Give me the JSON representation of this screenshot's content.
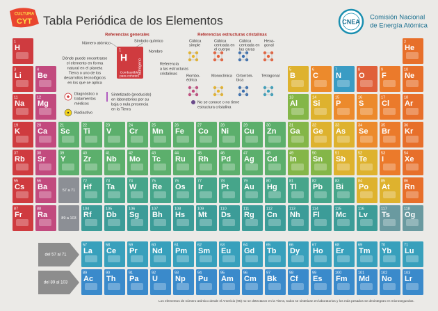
{
  "header": {
    "logo_top": "CULTURA",
    "logo_bottom": "CYT",
    "title": "Tabla Periódica de los Elementos",
    "acronym": "CNEA",
    "organization": [
      "Comisión Nacional",
      "de Energía Atómica"
    ]
  },
  "legend": {
    "title": "Referencias generales",
    "atomic_number": "Número atómico",
    "chemical_symbol": "Símbolo químico",
    "name": "Nombre",
    "crystal_reference": [
      "Referencia",
      "a las estructuras",
      "cristalinas"
    ],
    "where_found": [
      "Dónde puede encontrarse",
      "el elemento en forma",
      "natural en el planeta",
      "Tierra o uno de los",
      "desarrollos tecnológicos",
      "en los que se aplica"
    ],
    "sample_number": "1",
    "sample_symbol": "H",
    "sample_name": "hidrógeno",
    "sample_use": [
      "Combustible",
      "para cohetes"
    ],
    "medical": [
      "Diagnóstico o",
      "tratamientos",
      "médicos"
    ],
    "radioactive": "Radiactivo",
    "synthetic": [
      "Sintetizado (producido)",
      "en laboratorios por su",
      "baja o nula presencia",
      "en la Tierra"
    ]
  },
  "crystal_legend": {
    "title": "Referencias estructuras cristalinas",
    "items": [
      [
        "Cúbica",
        "simple"
      ],
      [
        "Cúbica",
        "centrada en",
        "el cuerpo"
      ],
      [
        "Cúbica",
        "centrada en",
        "las caras"
      ],
      [
        "Hexa-",
        "gonal"
      ],
      [
        "Rombo-",
        "édrica"
      ],
      [
        "Monoclínica"
      ],
      [
        "Ortorróm-",
        "bica"
      ],
      [
        "Tetragonal"
      ]
    ],
    "unknown": [
      "No se conoce o no tiene",
      "estructura cristalina"
    ]
  },
  "elements": [
    {
      "number": 1,
      "symbol": "H",
      "color": "#cf3b3f"
    },
    {
      "number": 2,
      "symbol": "He",
      "color": "#e76f2a"
    },
    {
      "number": 3,
      "symbol": "Li",
      "color": "#cf3b3f"
    },
    {
      "number": 4,
      "symbol": "Be",
      "color": "#c24a7e"
    },
    {
      "number": 5,
      "symbol": "B",
      "color": "#deb22e"
    },
    {
      "number": 6,
      "symbol": "C",
      "color": "#ec8a2c"
    },
    {
      "number": 7,
      "symbol": "N",
      "color": "#3a9cc4"
    },
    {
      "number": 8,
      "symbol": "O",
      "color": "#e0603a"
    },
    {
      "number": 9,
      "symbol": "F",
      "color": "#eb7a2b"
    },
    {
      "number": 10,
      "symbol": "Ne",
      "color": "#e76f2a"
    },
    {
      "number": 11,
      "symbol": "Na",
      "color": "#cf3b3f"
    },
    {
      "number": 12,
      "symbol": "Mg",
      "color": "#c24a7e"
    },
    {
      "number": 13,
      "symbol": "Al",
      "color": "#84b648"
    },
    {
      "number": 14,
      "symbol": "Si",
      "color": "#deb22e"
    },
    {
      "number": 15,
      "symbol": "P",
      "color": "#ec8a2c"
    },
    {
      "number": 16,
      "symbol": "S",
      "color": "#ec8a2c"
    },
    {
      "number": 17,
      "symbol": "Cl",
      "color": "#eb7a2b"
    },
    {
      "number": 18,
      "symbol": "Ar",
      "color": "#e76f2a"
    },
    {
      "number": 19,
      "symbol": "K",
      "color": "#cf3b3f"
    },
    {
      "number": 20,
      "symbol": "Ca",
      "color": "#c24a7e"
    },
    {
      "number": 21,
      "symbol": "Sc",
      "color": "#5caf6c"
    },
    {
      "number": 22,
      "symbol": "Ti",
      "color": "#5caf6c"
    },
    {
      "number": 23,
      "symbol": "V",
      "color": "#5caf6c"
    },
    {
      "number": 24,
      "symbol": "Cr",
      "color": "#5caf6c"
    },
    {
      "number": 25,
      "symbol": "Mn",
      "color": "#5caf6c"
    },
    {
      "number": 26,
      "symbol": "Fe",
      "color": "#5caf6c"
    },
    {
      "number": 27,
      "symbol": "Co",
      "color": "#5caf6c"
    },
    {
      "number": 28,
      "symbol": "Ni",
      "color": "#5caf6c"
    },
    {
      "number": 29,
      "symbol": "Cu",
      "color": "#5caf6c"
    },
    {
      "number": 30,
      "symbol": "Zn",
      "color": "#5caf6c"
    },
    {
      "number": 31,
      "symbol": "Ga",
      "color": "#84b648"
    },
    {
      "number": 32,
      "symbol": "Ge",
      "color": "#deb22e"
    },
    {
      "number": 33,
      "symbol": "As",
      "color": "#deb22e"
    },
    {
      "number": 34,
      "symbol": "Se",
      "color": "#ec8a2c"
    },
    {
      "number": 35,
      "symbol": "Br",
      "color": "#eb7a2b"
    },
    {
      "number": 36,
      "symbol": "Kr",
      "color": "#e76f2a"
    },
    {
      "number": 37,
      "symbol": "Rb",
      "color": "#cf3b3f"
    },
    {
      "number": 38,
      "symbol": "Sr",
      "color": "#c24a7e"
    },
    {
      "number": 39,
      "symbol": "Y",
      "color": "#5caf6c"
    },
    {
      "number": 40,
      "symbol": "Zr",
      "color": "#5caf6c"
    },
    {
      "number": 41,
      "symbol": "Nb",
      "color": "#5caf6c"
    },
    {
      "number": 42,
      "symbol": "Mo",
      "color": "#5caf6c"
    },
    {
      "number": 43,
      "symbol": "Tc",
      "color": "#5caf6c"
    },
    {
      "number": 44,
      "symbol": "Ru",
      "color": "#5caf6c"
    },
    {
      "number": 45,
      "symbol": "Rh",
      "color": "#5caf6c"
    },
    {
      "number": 46,
      "symbol": "Pd",
      "color": "#5caf6c"
    },
    {
      "number": 47,
      "symbol": "Ag",
      "color": "#5caf6c"
    },
    {
      "number": 48,
      "symbol": "Cd",
      "color": "#5caf6c"
    },
    {
      "number": 49,
      "symbol": "In",
      "color": "#84b648"
    },
    {
      "number": 50,
      "symbol": "Sn",
      "color": "#84b648"
    },
    {
      "number": 51,
      "symbol": "Sb",
      "color": "#deb22e"
    },
    {
      "number": 52,
      "symbol": "Te",
      "color": "#deb22e"
    },
    {
      "number": 53,
      "symbol": "I",
      "color": "#eb7a2b"
    },
    {
      "number": 54,
      "symbol": "Xe",
      "color": "#e76f2a"
    },
    {
      "number": 55,
      "symbol": "Cs",
      "color": "#cf3b3f"
    },
    {
      "number": 56,
      "symbol": "Ba",
      "color": "#c24a7e"
    },
    {
      "number": 57,
      "symbol": "La",
      "color": "#38a0bc"
    },
    {
      "number": 58,
      "symbol": "Ce",
      "color": "#38a0bc"
    },
    {
      "number": 59,
      "symbol": "Pr",
      "color": "#38a0bc"
    },
    {
      "number": 60,
      "symbol": "Nd",
      "color": "#38a0bc"
    },
    {
      "number": 61,
      "symbol": "Pm",
      "color": "#38a0bc"
    },
    {
      "number": 62,
      "symbol": "Sm",
      "color": "#38a0bc"
    },
    {
      "number": 63,
      "symbol": "Eu",
      "color": "#38a0bc"
    },
    {
      "number": 64,
      "symbol": "Gd",
      "color": "#38a0bc"
    },
    {
      "number": 65,
      "symbol": "Tb",
      "color": "#38a0bc"
    },
    {
      "number": 66,
      "symbol": "Dy",
      "color": "#38a0bc"
    },
    {
      "number": 67,
      "symbol": "Ho",
      "color": "#38a0bc"
    },
    {
      "number": 68,
      "symbol": "Er",
      "color": "#38a0bc"
    },
    {
      "number": 69,
      "symbol": "Tm",
      "color": "#38a0bc"
    },
    {
      "number": 70,
      "symbol": "Yb",
      "color": "#38a0bc"
    },
    {
      "number": 71,
      "symbol": "Lu",
      "color": "#38a0bc"
    },
    {
      "number": 72,
      "symbol": "Hf",
      "color": "#46a58a"
    },
    {
      "number": 73,
      "symbol": "Ta",
      "color": "#46a58a"
    },
    {
      "number": 74,
      "symbol": "W",
      "color": "#46a58a"
    },
    {
      "number": 75,
      "symbol": "Re",
      "color": "#46a58a"
    },
    {
      "number": 76,
      "symbol": "Os",
      "color": "#46a58a"
    },
    {
      "number": 77,
      "symbol": "Ir",
      "color": "#46a58a"
    },
    {
      "number": 78,
      "symbol": "Pt",
      "color": "#46a58a"
    },
    {
      "number": 79,
      "symbol": "Au",
      "color": "#46a58a"
    },
    {
      "number": 80,
      "symbol": "Hg",
      "color": "#46a58a"
    },
    {
      "number": 81,
      "symbol": "Tl",
      "color": "#46a58a"
    },
    {
      "number": 82,
      "symbol": "Pb",
      "color": "#46a58a"
    },
    {
      "number": 83,
      "symbol": "Bi",
      "color": "#46a58a"
    },
    {
      "number": 84,
      "symbol": "Po",
      "color": "#deb22e"
    },
    {
      "number": 85,
      "symbol": "At",
      "color": "#deb22e"
    },
    {
      "number": 86,
      "symbol": "Rn",
      "color": "#e76f2a"
    },
    {
      "number": 87,
      "symbol": "Fr",
      "color": "#cf3b3f"
    },
    {
      "number": 88,
      "symbol": "Ra",
      "color": "#c24a7e"
    },
    {
      "number": 89,
      "symbol": "Ac",
      "color": "#3a8acb"
    },
    {
      "number": 90,
      "symbol": "Th",
      "color": "#3a8acb"
    },
    {
      "number": 91,
      "symbol": "Pa",
      "color": "#3a8acb"
    },
    {
      "number": 92,
      "symbol": "U",
      "color": "#3a8acb"
    },
    {
      "number": 93,
      "symbol": "Np",
      "color": "#3a8acb"
    },
    {
      "number": 94,
      "symbol": "Pu",
      "color": "#3a8acb"
    },
    {
      "number": 95,
      "symbol": "Am",
      "color": "#3a8acb"
    },
    {
      "number": 96,
      "symbol": "Cm",
      "color": "#3a8acb"
    },
    {
      "number": 97,
      "symbol": "Bk",
      "color": "#3a8acb"
    },
    {
      "number": 98,
      "symbol": "Cf",
      "color": "#3a8acb"
    },
    {
      "number": 99,
      "symbol": "Es",
      "color": "#3a8acb"
    },
    {
      "number": 100,
      "symbol": "Fm",
      "color": "#3a8acb"
    },
    {
      "number": 101,
      "symbol": "Md",
      "color": "#3a8acb"
    },
    {
      "number": 102,
      "symbol": "No",
      "color": "#3a8acb"
    },
    {
      "number": 103,
      "symbol": "Lr",
      "color": "#3a8acb"
    },
    {
      "number": 104,
      "symbol": "Rf",
      "color": "#3c9c98"
    },
    {
      "number": 105,
      "symbol": "Db",
      "color": "#3c9c98"
    },
    {
      "number": 106,
      "symbol": "Sg",
      "color": "#3c9c98"
    },
    {
      "number": 107,
      "symbol": "Bh",
      "color": "#3c9c98"
    },
    {
      "number": 108,
      "symbol": "Hs",
      "color": "#3c9c98"
    },
    {
      "number": 109,
      "symbol": "Mt",
      "color": "#3c9c98"
    },
    {
      "number": 110,
      "symbol": "Ds",
      "color": "#3c9c98"
    },
    {
      "number": 111,
      "symbol": "Rg",
      "color": "#3c9c98"
    },
    {
      "number": 112,
      "symbol": "Cn",
      "color": "#3c9c98"
    },
    {
      "number": 113,
      "symbol": "Nh",
      "color": "#3c9c98"
    },
    {
      "number": 114,
      "symbol": "Fl",
      "color": "#3c9c98"
    },
    {
      "number": 115,
      "symbol": "Mc",
      "color": "#3c9c98"
    },
    {
      "number": 116,
      "symbol": "Lv",
      "color": "#3c9c98"
    },
    {
      "number": 117,
      "symbol": "Ts",
      "color": "#6a9aa0"
    },
    {
      "number": 118,
      "symbol": "Og",
      "color": "#6a9aa0"
    }
  ],
  "series_placeholders": [
    "57 a 71",
    "89 a 103"
  ],
  "series_arrows": [
    "del 57 al 71",
    "del 89 al 103"
  ],
  "footnote": "Los elementos de número atómico desde el Americio (95) no se detectaron en la Tierra, todos se sintetizan en laboratorios y los más pesados se desintegran en microsegundos."
}
